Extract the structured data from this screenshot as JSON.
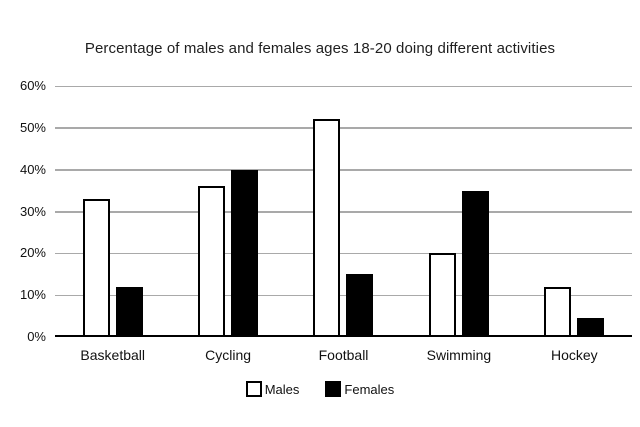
{
  "title": "Percentage of males and females ages 18-20 doing different activities",
  "colors": {
    "background": "#ffffff",
    "grid": "#a9a9a9",
    "axis": "#000000",
    "text": "#1a1a1a",
    "bar_males_fill": "#ffffff",
    "bar_females_fill": "#000000",
    "bar_border": "#000000"
  },
  "chart_data": {
    "type": "bar",
    "title": "Percentage of males and females ages 18-20 doing different activities",
    "categories": [
      "Basketball",
      "Cycling",
      "Football",
      "Swimming",
      "Hockey"
    ],
    "series": [
      {
        "name": "Males",
        "fill": "#ffffff",
        "values": [
          33,
          36,
          52,
          20,
          12
        ]
      },
      {
        "name": "Females",
        "fill": "#000000",
        "values": [
          12,
          40,
          15,
          35,
          4.5
        ]
      }
    ],
    "xlabel": "",
    "ylabel": "",
    "ylim": [
      0,
      60
    ],
    "y_ticks": [
      "60%",
      "50%",
      "40%",
      "30%",
      "20%",
      "10%",
      "0%"
    ],
    "grid": true,
    "legend_position": "bottom"
  }
}
